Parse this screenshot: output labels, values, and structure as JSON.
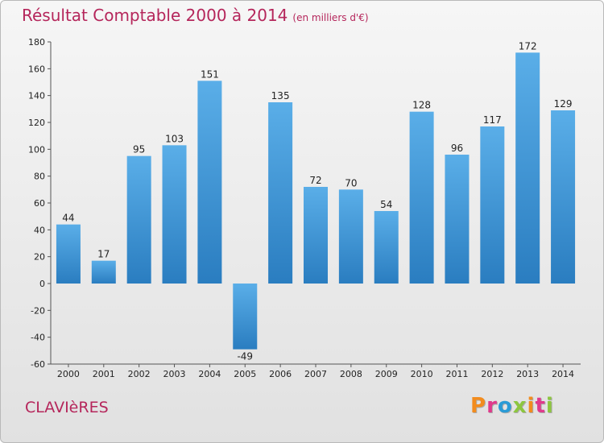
{
  "header": {
    "title": "Résultat Comptable 2000 à 2014",
    "subtitle": "(en milliers d'€)"
  },
  "footer": {
    "place": "CLAVIèRES",
    "logo": "Proxiti",
    "logo_colors": [
      "#f28c1e",
      "#e03a8c",
      "#2a9bd6",
      "#8dc63f",
      "#f28c1e",
      "#e03a8c",
      "#8dc63f"
    ]
  },
  "colors": {
    "bar_light": "#5aaee8",
    "bar_dark": "#2a7dc0",
    "title": "#b5265b"
  },
  "chart_data": {
    "type": "bar",
    "title": "Résultat Comptable 2000 à 2014",
    "subtitle": "(en milliers d'€)",
    "categories": [
      "2000",
      "2001",
      "2002",
      "2003",
      "2004",
      "2005",
      "2006",
      "2007",
      "2008",
      "2009",
      "2010",
      "2011",
      "2012",
      "2013",
      "2014"
    ],
    "values": [
      44,
      17,
      95,
      103,
      151,
      -49,
      135,
      72,
      70,
      54,
      128,
      96,
      117,
      172,
      129
    ],
    "ylim": [
      -60,
      180
    ],
    "yticks": [
      -60,
      -40,
      -20,
      0,
      20,
      40,
      60,
      80,
      100,
      120,
      140,
      160,
      180
    ],
    "grid": false,
    "legend": "none"
  }
}
